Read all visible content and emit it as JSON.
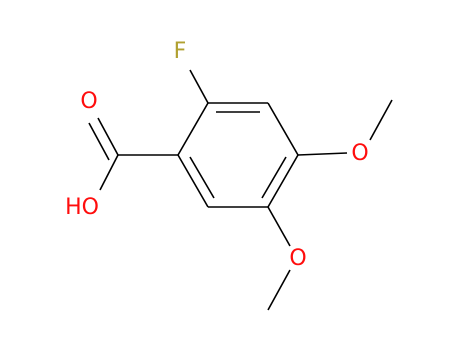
{
  "atoms": [
    {
      "label": "F"
    },
    {
      "label": "O"
    },
    {
      "label": "HO"
    },
    {
      "label": "O"
    },
    {
      "label": "O"
    }
  ]
}
